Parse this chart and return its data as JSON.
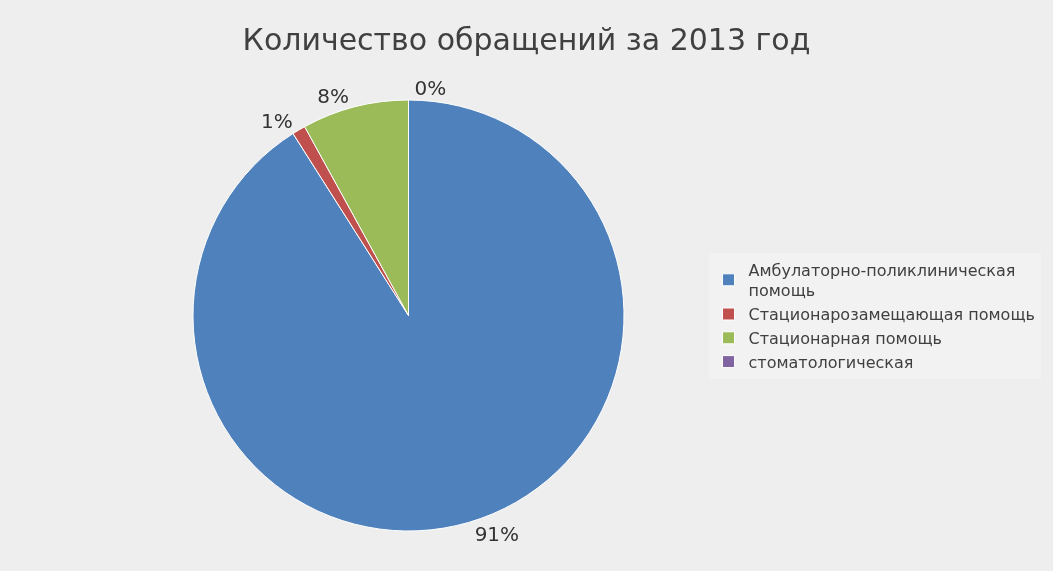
{
  "chart_data": {
    "type": "pie",
    "title": "Количество обращений за 2013 год",
    "categories": [
      "Амбулаторно-поликлиническая помощь",
      "Стационарозамещающая помощь",
      "Стационарная помощь",
      "стоматологическая"
    ],
    "values": [
      91,
      1,
      8,
      0
    ],
    "value_labels": [
      "91%",
      "1%",
      "8%",
      "0%"
    ],
    "colors": [
      "#4f81bd",
      "#c0504d",
      "#9bbb59",
      "#8064a2"
    ],
    "legend": "right"
  }
}
